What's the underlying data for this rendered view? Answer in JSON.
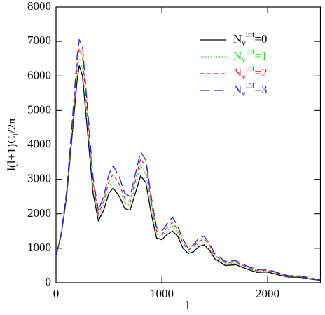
{
  "chart_data": {
    "type": "line",
    "xlabel": "l",
    "ylabel": "l(l+1)C_l/2π",
    "x": [
      2,
      50,
      100,
      150,
      200,
      220,
      250,
      300,
      350,
      400,
      450,
      500,
      540,
      600,
      650,
      700,
      750,
      800,
      850,
      900,
      950,
      1000,
      1050,
      1100,
      1150,
      1200,
      1250,
      1300,
      1350,
      1400,
      1450,
      1500,
      1600,
      1700,
      1800,
      1900,
      2000,
      2100,
      2200,
      2300,
      2400,
      2500
    ],
    "series": [
      {
        "name": "N_ν^int=0",
        "color": "#000000",
        "style": "solid",
        "values": [
          800,
          1400,
          2500,
          4200,
          5900,
          6300,
          6000,
          4300,
          2600,
          1800,
          2100,
          2600,
          2750,
          2500,
          2150,
          2100,
          2600,
          3100,
          2900,
          2000,
          1300,
          1250,
          1400,
          1500,
          1350,
          1000,
          850,
          900,
          1050,
          1100,
          950,
          700,
          500,
          520,
          400,
          300,
          310,
          230,
          160,
          160,
          110,
          70
        ]
      },
      {
        "name": "N_ν^int=1",
        "color": "#22dd22",
        "style": "dotted",
        "values": [
          800,
          1420,
          2550,
          4300,
          6100,
          6500,
          6250,
          4500,
          2750,
          1900,
          2250,
          2800,
          2950,
          2700,
          2300,
          2250,
          2800,
          3400,
          3150,
          2200,
          1400,
          1350,
          1500,
          1650,
          1450,
          1100,
          900,
          1000,
          1150,
          1200,
          1050,
          750,
          550,
          560,
          430,
          330,
          340,
          250,
          175,
          175,
          120,
          80
        ]
      },
      {
        "name": "N_ν^int=2",
        "color": "#ee2222",
        "style": "dashed",
        "values": [
          800,
          1440,
          2600,
          4420,
          6350,
          6800,
          6550,
          4750,
          2900,
          2000,
          2350,
          2950,
          3150,
          2850,
          2450,
          2350,
          2950,
          3600,
          3350,
          2350,
          1500,
          1400,
          1600,
          1750,
          1550,
          1150,
          950,
          1050,
          1200,
          1280,
          1100,
          800,
          580,
          600,
          460,
          350,
          360,
          270,
          185,
          185,
          130,
          85
        ]
      },
      {
        "name": "N_ν^int=3",
        "color": "#2222ee",
        "style": "longdash",
        "values": [
          800,
          1460,
          2650,
          4550,
          6600,
          7050,
          6850,
          5000,
          3050,
          2100,
          2500,
          3150,
          3400,
          3050,
          2600,
          2500,
          3150,
          3800,
          3550,
          2500,
          1600,
          1500,
          1700,
          1900,
          1650,
          1250,
          1000,
          1100,
          1300,
          1350,
          1150,
          850,
          620,
          640,
          490,
          380,
          390,
          290,
          200,
          200,
          140,
          90
        ]
      }
    ],
    "xlim": [
      0,
      2500
    ],
    "xticks": [
      0,
      1000,
      2000
    ],
    "ylim": [
      0,
      8000
    ],
    "yticks": [
      0,
      1000,
      2000,
      3000,
      4000,
      5000,
      6000,
      7000,
      8000
    ],
    "legend": "upper right"
  }
}
